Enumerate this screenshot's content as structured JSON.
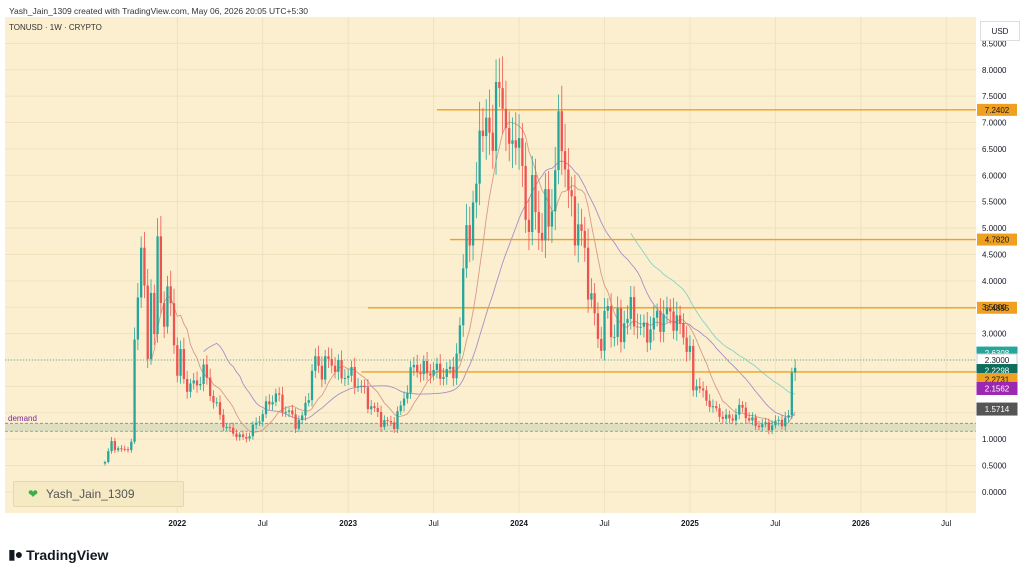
{
  "header": {
    "created_by": "Yash_Jain_1309 created with TradingView.com, May 06, 2026 20:05 UTC+5:30",
    "symbol_line": "TONUSD · 1W · CRYPTO"
  },
  "currency_label": "USD",
  "watermark": {
    "icon": "green-heart-icon",
    "text": "Yash_Jain_1309"
  },
  "brand": {
    "logo_text": "TradingView",
    "icon": "tradingview-logo-icon"
  },
  "chart_data": {
    "type": "candlestick",
    "title": "",
    "xlabel": "",
    "ylabel": "",
    "y_ticks": [
      0.0,
      0.5,
      1.0,
      1.5,
      2.0,
      2.5,
      3.0,
      3.5,
      4.0,
      4.5,
      5.0,
      5.5,
      6.0,
      6.5,
      7.0,
      7.5,
      8.0,
      8.5
    ],
    "y_tick_labels": [
      "0.0000",
      "0.5000",
      "1.0000",
      "1.5000",
      "2.0000",
      "2.5000",
      "3.0000",
      "3.5000",
      "4.0000",
      "4.5000",
      "5.0000",
      "5.5000",
      "6.0000",
      "6.5000",
      "7.0000",
      "7.5000",
      "8.0000",
      "8.5000"
    ],
    "ylim": [
      -0.4,
      9.0
    ],
    "x_tick_labels": [
      "2022",
      "Jul",
      "2023",
      "Jul",
      "2024",
      "Jul",
      "2025",
      "Jul",
      "2026",
      "Jul"
    ],
    "x_ticks_week": [
      22,
      48,
      74,
      100,
      126,
      152,
      178,
      204,
      230,
      256
    ],
    "xlim_week": [
      0,
      262
    ],
    "horizontal_levels": [
      {
        "label": "7.2402",
        "value": 7.2402,
        "color": "#f0a020",
        "start_week": 101
      },
      {
        "label": "4.7820",
        "value": 4.782,
        "color": "#f0a020",
        "start_week": 105
      },
      {
        "label": "3.4895",
        "value": 3.4895,
        "color": "#f0a020",
        "start_week": 80
      },
      {
        "label": "2.2731",
        "value": 2.2731,
        "color": "#f0a020",
        "start_week": 78
      }
    ],
    "demand_zone": {
      "label": "demand",
      "low": 1.15,
      "high": 1.3
    },
    "price_labels": [
      {
        "label": "2.6308",
        "value": 2.6308,
        "color": "#26a69a"
      },
      {
        "label": "2.3000",
        "value": 2.5,
        "color": "#ffffff"
      },
      {
        "label": "2.2298",
        "value": 2.3,
        "color": "#0d6e5e"
      },
      {
        "label": "2.2731",
        "value": 2.13,
        "color": "#f0a020"
      },
      {
        "label": "2.1562",
        "value": 1.96,
        "color": "#9c27b0"
      },
      {
        "label": "1.5714",
        "value": 1.57,
        "color": "#555555"
      }
    ],
    "colors": {
      "up": "#26a69a",
      "down": "#ef5350",
      "ma_fast": "#d89a86",
      "ma_slow": "#a98fc6",
      "ma_long": "#88d2c4",
      "background": "#fbefcf"
    },
    "ohlc_keyframes": [
      [
        0,
        0.55
      ],
      [
        2,
        0.95
      ],
      [
        4,
        0.78
      ],
      [
        6,
        0.82
      ],
      [
        8,
        0.88
      ],
      [
        9,
        2.9
      ],
      [
        10,
        3.8
      ],
      [
        11,
        4.8
      ],
      [
        12,
        3.6
      ],
      [
        13,
        2.6
      ],
      [
        14,
        3.9
      ],
      [
        15,
        3.0
      ],
      [
        16,
        4.5
      ],
      [
        17,
        3.8
      ],
      [
        18,
        3.2
      ],
      [
        19,
        3.8
      ],
      [
        20,
        3.4
      ],
      [
        21,
        3.0
      ],
      [
        22,
        2.2
      ],
      [
        23,
        2.6
      ],
      [
        24,
        2.1
      ],
      [
        26,
        2.0
      ],
      [
        28,
        2.05
      ],
      [
        30,
        2.3
      ],
      [
        32,
        1.9
      ],
      [
        34,
        1.6
      ],
      [
        36,
        1.3
      ],
      [
        38,
        1.15
      ],
      [
        40,
        1.1
      ],
      [
        42,
        1.0
      ],
      [
        44,
        1.1
      ],
      [
        46,
        1.3
      ],
      [
        48,
        1.5
      ],
      [
        50,
        1.7
      ],
      [
        52,
        1.85
      ],
      [
        54,
        1.6
      ],
      [
        56,
        1.5
      ],
      [
        58,
        1.3
      ],
      [
        60,
        1.4
      ],
      [
        62,
        1.9
      ],
      [
        64,
        2.5
      ],
      [
        66,
        2.3
      ],
      [
        68,
        2.5
      ],
      [
        70,
        2.4
      ],
      [
        72,
        2.2
      ],
      [
        74,
        2.25
      ],
      [
        76,
        2.1
      ],
      [
        78,
        2.0
      ],
      [
        80,
        1.7
      ],
      [
        82,
        1.55
      ],
      [
        84,
        1.35
      ],
      [
        86,
        1.3
      ],
      [
        88,
        1.3
      ],
      [
        90,
        1.6
      ],
      [
        92,
        2.0
      ],
      [
        94,
        2.4
      ],
      [
        96,
        2.3
      ],
      [
        98,
        2.3
      ],
      [
        100,
        2.3
      ],
      [
        102,
        2.25
      ],
      [
        104,
        2.25
      ],
      [
        106,
        2.3
      ],
      [
        108,
        3.0
      ],
      [
        109,
        4.2
      ],
      [
        110,
        5.4
      ],
      [
        111,
        4.6
      ],
      [
        112,
        5.2
      ],
      [
        113,
        6.0
      ],
      [
        114,
        7.2
      ],
      [
        115,
        6.5
      ],
      [
        116,
        6.8
      ],
      [
        117,
        7.2
      ],
      [
        118,
        6.6
      ],
      [
        119,
        7.4
      ],
      [
        120,
        7.5
      ],
      [
        121,
        7.8
      ],
      [
        122,
        6.8
      ],
      [
        123,
        6.3
      ],
      [
        124,
        6.7
      ],
      [
        125,
        7.0
      ],
      [
        126,
        6.4
      ],
      [
        127,
        6.0
      ],
      [
        128,
        5.3
      ],
      [
        129,
        5.2
      ],
      [
        130,
        5.6
      ],
      [
        131,
        5.3
      ],
      [
        132,
        5.1
      ],
      [
        133,
        4.9
      ],
      [
        134,
        5.3
      ],
      [
        135,
        5.2
      ],
      [
        136,
        5.5
      ],
      [
        137,
        6.1
      ],
      [
        138,
        6.7
      ],
      [
        139,
        6.9
      ],
      [
        140,
        6.2
      ],
      [
        141,
        5.6
      ],
      [
        142,
        5.3
      ],
      [
        143,
        5.1
      ],
      [
        144,
        5.0
      ],
      [
        145,
        4.8
      ],
      [
        146,
        4.5
      ],
      [
        147,
        4.0
      ],
      [
        148,
        3.6
      ],
      [
        149,
        3.3
      ],
      [
        150,
        2.9
      ],
      [
        151,
        2.9
      ],
      [
        152,
        3.2
      ],
      [
        153,
        3.5
      ],
      [
        154,
        3.0
      ],
      [
        155,
        3.1
      ],
      [
        156,
        3.2
      ],
      [
        157,
        2.9
      ],
      [
        158,
        3.3
      ],
      [
        160,
        3.4
      ],
      [
        162,
        3.2
      ],
      [
        164,
        3.0
      ],
      [
        166,
        3.1
      ],
      [
        168,
        3.3
      ],
      [
        170,
        3.3
      ],
      [
        172,
        3.4
      ],
      [
        174,
        3.2
      ],
      [
        176,
        3.0
      ],
      [
        178,
        2.6
      ],
      [
        179,
        1.9
      ],
      [
        180,
        2.1
      ],
      [
        181,
        2.0
      ],
      [
        182,
        1.8
      ],
      [
        184,
        1.7
      ],
      [
        186,
        1.5
      ],
      [
        188,
        1.45
      ],
      [
        190,
        1.35
      ],
      [
        192,
        1.5
      ],
      [
        194,
        1.6
      ],
      [
        196,
        1.35
      ],
      [
        198,
        1.3
      ],
      [
        200,
        1.25
      ],
      [
        202,
        1.25
      ],
      [
        204,
        1.3
      ],
      [
        206,
        1.35
      ],
      [
        208,
        1.4
      ],
      [
        209,
        2.25
      ],
      [
        210,
        2.55
      ]
    ]
  }
}
